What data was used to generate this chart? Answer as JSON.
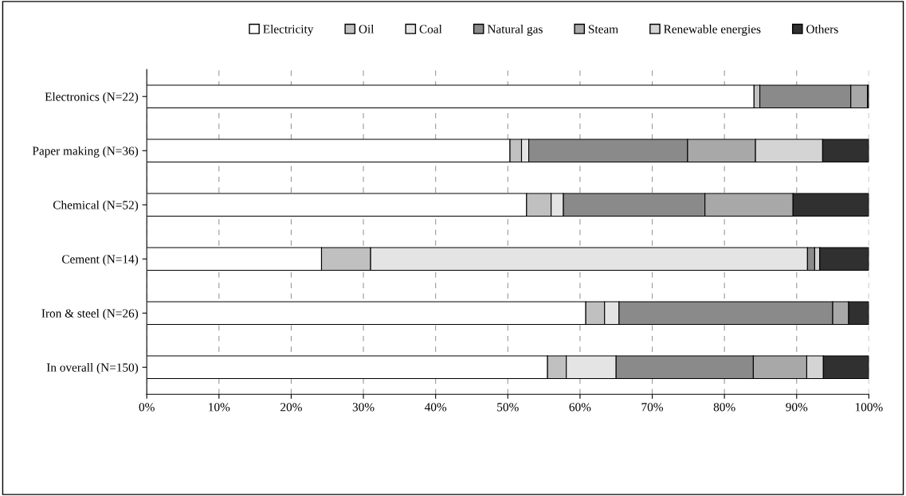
{
  "chart_data": {
    "type": "bar",
    "orientation": "horizontal",
    "stacked": true,
    "categories": [
      "Electronics (N=22)",
      "Paper making (N=36)",
      "Chemical (N=52)",
      "Cement (N=14)",
      "Iron & steel (N=26)",
      "In overall (N=150)"
    ],
    "series": [
      {
        "name": "Electricity",
        "color": "#ffffff",
        "values": [
          84.1,
          50.3,
          52.6,
          24.2,
          60.8,
          55.5
        ]
      },
      {
        "name": "Oil",
        "color": "#c0c0c0",
        "values": [
          0.8,
          1.6,
          3.4,
          6.8,
          2.6,
          2.6
        ]
      },
      {
        "name": "Coal",
        "color": "#e4e4e4",
        "values": [
          0,
          1.0,
          1.7,
          60.5,
          2.0,
          6.9
        ]
      },
      {
        "name": "Natural gas",
        "color": "#8a8a8a",
        "values": [
          12.6,
          22.0,
          19.6,
          1.0,
          29.6,
          19.0
        ]
      },
      {
        "name": "Steam",
        "color": "#a8a8a8",
        "values": [
          2.3,
          9.4,
          12.2,
          0,
          2.2,
          7.4
        ]
      },
      {
        "name": "Renewable energies",
        "color": "#d4d4d4",
        "values": [
          0,
          9.3,
          0,
          0.7,
          0,
          2.3
        ]
      },
      {
        "name": "Others",
        "color": "#303030",
        "values": [
          0.2,
          6.4,
          10.5,
          6.8,
          2.8,
          6.3
        ]
      }
    ],
    "xlim": [
      0,
      100
    ],
    "xticks": [
      {
        "value": 0,
        "label": "0%"
      },
      {
        "value": 10,
        "label": "10%"
      },
      {
        "value": 20,
        "label": "20%"
      },
      {
        "value": 30,
        "label": "30%"
      },
      {
        "value": 40,
        "label": "40%"
      },
      {
        "value": 50,
        "label": "50%"
      },
      {
        "value": 60,
        "label": "60%"
      },
      {
        "value": 70,
        "label": "70%"
      },
      {
        "value": 80,
        "label": "80%"
      },
      {
        "value": 90,
        "label": "90%"
      },
      {
        "value": 100,
        "label": "100%"
      }
    ],
    "grid": "x",
    "legend": "top"
  }
}
